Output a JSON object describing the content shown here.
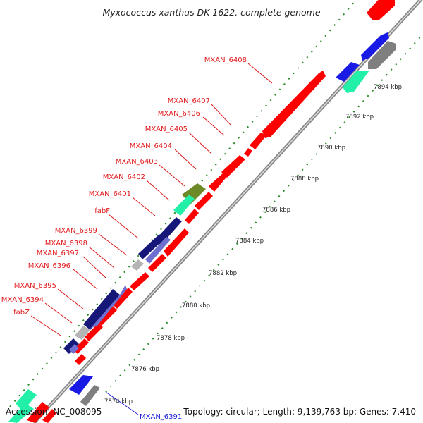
{
  "title": "Myxococcus xanthus DK 1622, complete genome",
  "footer": {
    "accession": "Accession: NC_008095",
    "topology": "Topology: circular; Length: 9,139,763 bp; Genes: 7,410"
  },
  "colors": {
    "gene_red": "#ff0000",
    "label_red": "#e0181a",
    "label_blue": "#1a1ad6",
    "tick_green": "#2a8a2a",
    "dark_blue": "#17177a",
    "slate_blue": "#6f6fd0",
    "teal": "#22f0a8",
    "olive": "#6e8a28",
    "grey": "#b4b4b4",
    "dark_grey": "#7f7f7f",
    "blue": "#1a1ae6",
    "backbone": "#888888"
  },
  "scale_ticks": [
    {
      "label": "7874 kbp",
      "kbp": 7874
    },
    {
      "label": "7876 kbp",
      "kbp": 7876
    },
    {
      "label": "7878 kbp",
      "kbp": 7878
    },
    {
      "label": "7880 kbp",
      "kbp": 7880
    },
    {
      "label": "7882 kbp",
      "kbp": 7882
    },
    {
      "label": "7884 kbp",
      "kbp": 7884
    },
    {
      "label": "7886 kbp",
      "kbp": 7886
    },
    {
      "label": "7888 kbp",
      "kbp": 7888
    },
    {
      "label": "7890 kbp",
      "kbp": 7890
    },
    {
      "label": "7892 kbp",
      "kbp": 7892
    },
    {
      "label": "7894 kbp",
      "kbp": 7894
    }
  ],
  "gene_labels": [
    {
      "name": "MXAN_6408",
      "color": "label_red"
    },
    {
      "name": "MXAN_6407",
      "color": "label_red"
    },
    {
      "name": "MXAN_6406",
      "color": "label_red"
    },
    {
      "name": "MXAN_6405",
      "color": "label_red"
    },
    {
      "name": "MXAN_6404",
      "color": "label_red"
    },
    {
      "name": "MXAN_6403",
      "color": "label_red"
    },
    {
      "name": "MXAN_6402",
      "color": "label_red"
    },
    {
      "name": "MXAN_6401",
      "color": "label_red"
    },
    {
      "name": "fabF",
      "color": "label_red"
    },
    {
      "name": "MXAN_6399",
      "color": "label_red"
    },
    {
      "name": "MXAN_6398",
      "color": "label_red"
    },
    {
      "name": "MXAN_6397",
      "color": "label_red"
    },
    {
      "name": "MXAN_6396",
      "color": "label_red"
    },
    {
      "name": "MXAN_6395",
      "color": "label_red"
    },
    {
      "name": "MXAN_6394",
      "color": "label_red"
    },
    {
      "name": "fabZ",
      "color": "label_red"
    },
    {
      "name": "MXAN_6391",
      "color": "label_blue"
    }
  ]
}
